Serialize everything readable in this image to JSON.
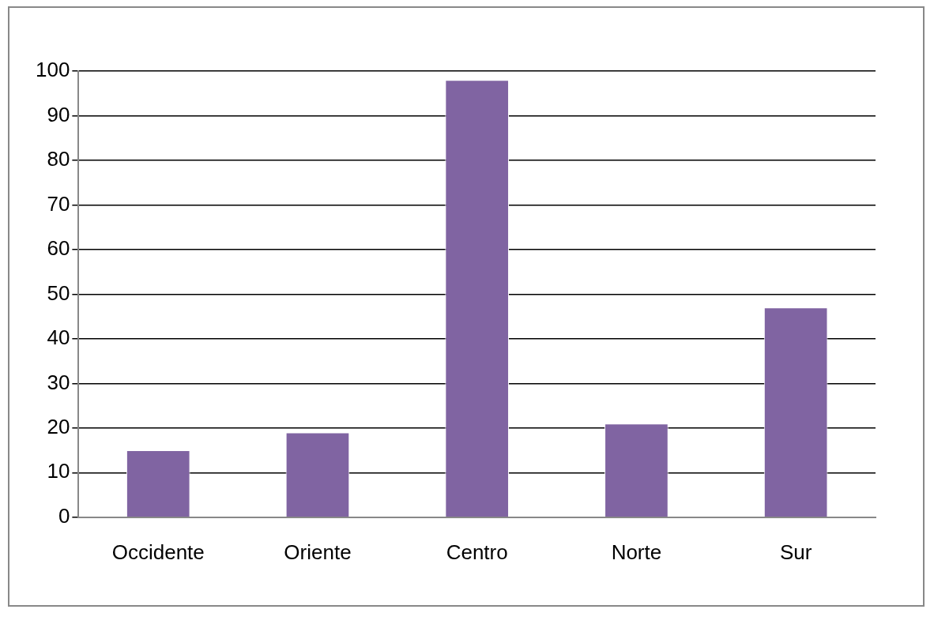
{
  "chart_data": {
    "type": "bar",
    "categories": [
      "Occidente",
      "Oriente",
      "Centro",
      "Norte",
      "Sur"
    ],
    "values": [
      15,
      19,
      98,
      21,
      47
    ],
    "color": "#8064a2",
    "ylim": [
      0,
      100
    ],
    "yticks": [
      0,
      10,
      20,
      30,
      40,
      50,
      60,
      70,
      80,
      90,
      100
    ],
    "grid": "y",
    "legend": false
  }
}
